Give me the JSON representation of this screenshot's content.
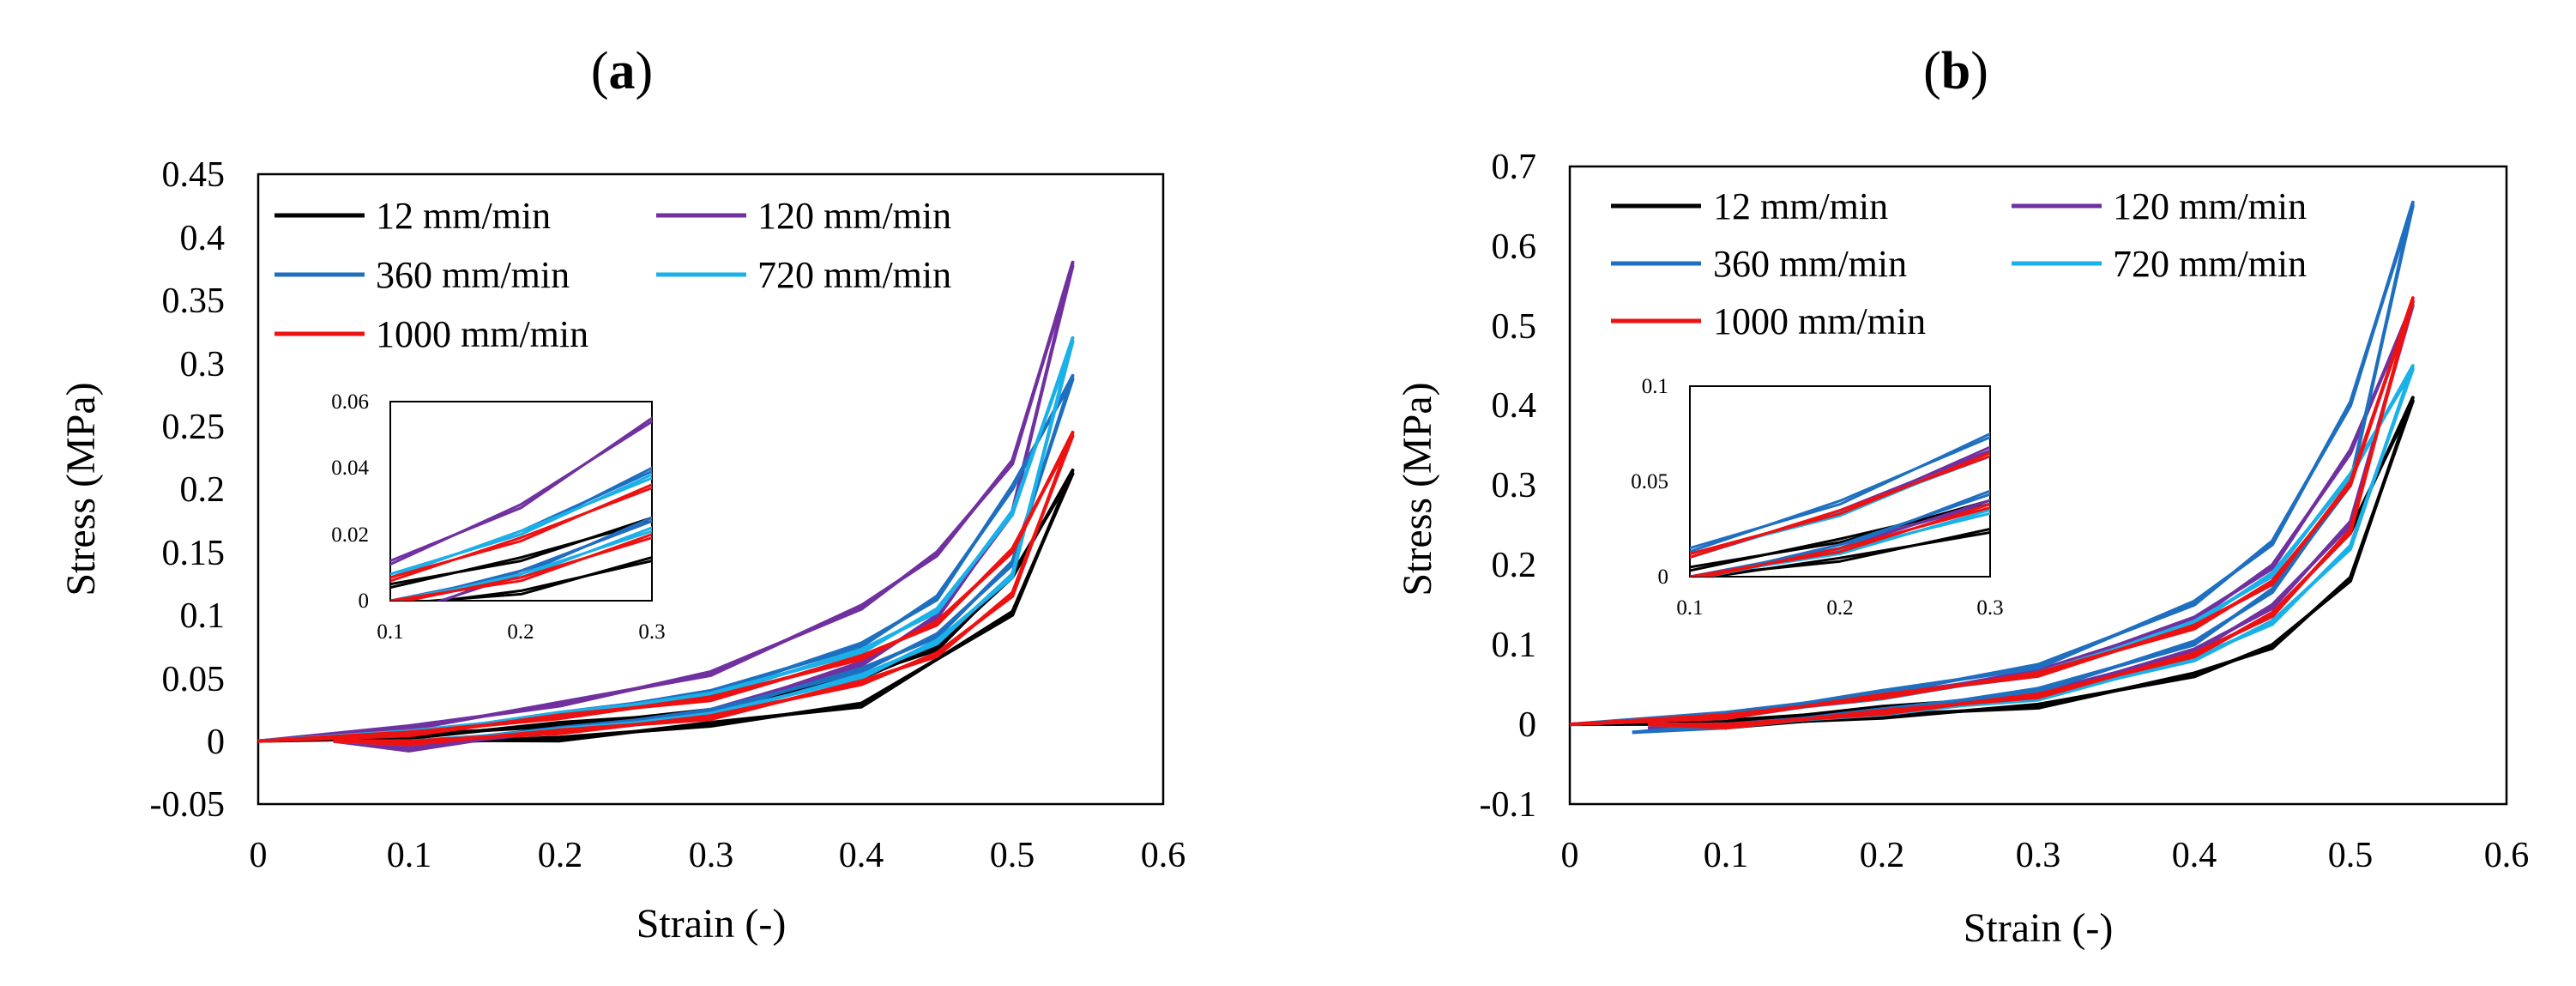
{
  "panels": [
    {
      "id": "a",
      "label": "a",
      "ticks_y": [
        "-0.05",
        "0",
        "0.05",
        "0.1",
        "0.15",
        "0.2",
        "0.25",
        "0.3",
        "0.35",
        "0.4",
        "0.45"
      ],
      "ticks_x": [
        "0",
        "0.1",
        "0.2",
        "0.3",
        "0.4",
        "0.5",
        "0.6"
      ],
      "inset_ticks_y": [
        "0",
        "0.02",
        "0.04",
        "0.06"
      ],
      "inset_ticks_x": [
        "0.1",
        "0.2",
        "0.3"
      ]
    },
    {
      "id": "b",
      "label": "b",
      "ticks_y": [
        "-0.1",
        "0",
        "0.1",
        "0.2",
        "0.3",
        "0.4",
        "0.5",
        "0.6",
        "0.7"
      ],
      "ticks_x": [
        "0",
        "0.1",
        "0.2",
        "0.3",
        "0.4",
        "0.5",
        "0.6"
      ],
      "inset_ticks_y": [
        "0",
        "0.05",
        "0.1"
      ],
      "inset_ticks_x": [
        "0.1",
        "0.2",
        "0.3"
      ]
    }
  ],
  "legend": [
    {
      "label": "12 mm/min",
      "color": "#000000"
    },
    {
      "label": "120 mm/min",
      "color": "#7030a0"
    },
    {
      "label": "360 mm/min",
      "color": "#1f6fc0"
    },
    {
      "label": "720 mm/min",
      "color": "#1ab0e8"
    },
    {
      "label": "1000 mm/min",
      "color": "#ee1111"
    }
  ],
  "chart_data": [
    {
      "type": "line",
      "title": "(a)",
      "xlabel": "Strain (-)",
      "ylabel": "Stress (MPa)",
      "xlim": [
        0,
        0.6
      ],
      "ylim": [
        -0.05,
        0.45
      ],
      "grid": false,
      "legend_position": "top-left",
      "series": [
        {
          "name": "12 mm/min",
          "loading": [
            [
              0,
              0
            ],
            [
              0.1,
              0.005
            ],
            [
              0.2,
              0.012
            ],
            [
              0.3,
              0.025
            ],
            [
              0.4,
              0.05
            ],
            [
              0.45,
              0.075
            ],
            [
              0.5,
              0.13
            ],
            [
              0.54,
              0.215
            ]
          ],
          "unloading": [
            [
              0.54,
              0.215
            ],
            [
              0.5,
              0.1
            ],
            [
              0.4,
              0.03
            ],
            [
              0.3,
              0.012
            ],
            [
              0.2,
              0.003
            ],
            [
              0.1,
              -0.002
            ],
            [
              0.05,
              0
            ]
          ]
        },
        {
          "name": "120 mm/min",
          "loading": [
            [
              0,
              0
            ],
            [
              0.1,
              0.012
            ],
            [
              0.2,
              0.028
            ],
            [
              0.3,
              0.055
            ],
            [
              0.4,
              0.105
            ],
            [
              0.45,
              0.15
            ],
            [
              0.5,
              0.22
            ],
            [
              0.54,
              0.38
            ]
          ],
          "unloading": [
            [
              0.54,
              0.38
            ],
            [
              0.5,
              0.18
            ],
            [
              0.45,
              0.1
            ],
            [
              0.4,
              0.06
            ],
            [
              0.3,
              0.025
            ],
            [
              0.2,
              0.008
            ],
            [
              0.1,
              -0.005
            ],
            [
              0.05,
              0
            ]
          ]
        },
        {
          "name": "360 mm/min",
          "loading": [
            [
              0,
              0
            ],
            [
              0.1,
              0.008
            ],
            [
              0.2,
              0.02
            ],
            [
              0.3,
              0.04
            ],
            [
              0.4,
              0.075
            ],
            [
              0.45,
              0.115
            ],
            [
              0.5,
              0.2
            ],
            [
              0.54,
              0.29
            ]
          ],
          "unloading": [
            [
              0.54,
              0.29
            ],
            [
              0.5,
              0.14
            ],
            [
              0.45,
              0.085
            ],
            [
              0.4,
              0.055
            ],
            [
              0.3,
              0.025
            ],
            [
              0.2,
              0.008
            ],
            [
              0.1,
              0
            ],
            [
              0.05,
              0
            ]
          ]
        },
        {
          "name": "720 mm/min",
          "loading": [
            [
              0,
              0
            ],
            [
              0.1,
              0.008
            ],
            [
              0.2,
              0.02
            ],
            [
              0.3,
              0.038
            ],
            [
              0.4,
              0.07
            ],
            [
              0.45,
              0.105
            ],
            [
              0.5,
              0.18
            ],
            [
              0.54,
              0.32
            ]
          ],
          "unloading": [
            [
              0.54,
              0.32
            ],
            [
              0.5,
              0.13
            ],
            [
              0.45,
              0.08
            ],
            [
              0.4,
              0.05
            ],
            [
              0.3,
              0.022
            ],
            [
              0.2,
              0.007
            ],
            [
              0.1,
              0
            ],
            [
              0.05,
              0
            ]
          ]
        },
        {
          "name": "1000 mm/min",
          "loading": [
            [
              0,
              0
            ],
            [
              0.1,
              0.007
            ],
            [
              0.2,
              0.018
            ],
            [
              0.3,
              0.035
            ],
            [
              0.4,
              0.065
            ],
            [
              0.45,
              0.095
            ],
            [
              0.5,
              0.15
            ],
            [
              0.54,
              0.245
            ]
          ],
          "unloading": [
            [
              0.54,
              0.245
            ],
            [
              0.5,
              0.115
            ],
            [
              0.45,
              0.07
            ],
            [
              0.4,
              0.045
            ],
            [
              0.3,
              0.02
            ],
            [
              0.2,
              0.006
            ],
            [
              0.1,
              0
            ],
            [
              0.05,
              0
            ]
          ]
        }
      ],
      "inset": {
        "xlim": [
          0.1,
          0.3
        ],
        "ylim": [
          0,
          0.06
        ]
      }
    },
    {
      "type": "line",
      "title": "(b)",
      "xlabel": "Strain (-)",
      "ylabel": "Stress (MPa)",
      "xlim": [
        0,
        0.6
      ],
      "ylim": [
        -0.1,
        0.7
      ],
      "grid": false,
      "legend_position": "top-left",
      "series": [
        {
          "name": "12 mm/min",
          "loading": [
            [
              0,
              0
            ],
            [
              0.1,
              0.005
            ],
            [
              0.2,
              0.018
            ],
            [
              0.3,
              0.04
            ],
            [
              0.4,
              0.085
            ],
            [
              0.45,
              0.14
            ],
            [
              0.5,
              0.24
            ],
            [
              0.54,
              0.41
            ]
          ],
          "unloading": [
            [
              0.54,
              0.41
            ],
            [
              0.5,
              0.18
            ],
            [
              0.45,
              0.1
            ],
            [
              0.4,
              0.06
            ],
            [
              0.3,
              0.025
            ],
            [
              0.2,
              0.008
            ],
            [
              0.1,
              0
            ],
            [
              0.05,
              0
            ]
          ]
        },
        {
          "name": "120 mm/min",
          "loading": [
            [
              0,
              0
            ],
            [
              0.1,
              0.012
            ],
            [
              0.2,
              0.033
            ],
            [
              0.3,
              0.068
            ],
            [
              0.4,
              0.13
            ],
            [
              0.45,
              0.2
            ],
            [
              0.5,
              0.34
            ],
            [
              0.54,
              0.53
            ]
          ],
          "unloading": [
            [
              0.54,
              0.53
            ],
            [
              0.5,
              0.25
            ],
            [
              0.45,
              0.15
            ],
            [
              0.4,
              0.09
            ],
            [
              0.3,
              0.04
            ],
            [
              0.2,
              0.015
            ],
            [
              0.1,
              0
            ],
            [
              0.05,
              -0.005
            ]
          ]
        },
        {
          "name": "360 mm/min",
          "loading": [
            [
              0,
              0
            ],
            [
              0.1,
              0.015
            ],
            [
              0.2,
              0.038
            ],
            [
              0.3,
              0.075
            ],
            [
              0.4,
              0.15
            ],
            [
              0.45,
              0.23
            ],
            [
              0.5,
              0.4
            ],
            [
              0.54,
              0.655
            ]
          ],
          "unloading": [
            [
              0.54,
              0.655
            ],
            [
              0.5,
              0.3
            ],
            [
              0.45,
              0.17
            ],
            [
              0.4,
              0.1
            ],
            [
              0.3,
              0.045
            ],
            [
              0.2,
              0.015
            ],
            [
              0.1,
              0
            ],
            [
              0.04,
              -0.01
            ]
          ]
        },
        {
          "name": "720 mm/min",
          "loading": [
            [
              0,
              0
            ],
            [
              0.1,
              0.012
            ],
            [
              0.2,
              0.032
            ],
            [
              0.3,
              0.065
            ],
            [
              0.4,
              0.125
            ],
            [
              0.45,
              0.19
            ],
            [
              0.5,
              0.31
            ],
            [
              0.54,
              0.45
            ]
          ],
          "unloading": [
            [
              0.54,
              0.45
            ],
            [
              0.5,
              0.22
            ],
            [
              0.45,
              0.13
            ],
            [
              0.4,
              0.08
            ],
            [
              0.3,
              0.035
            ],
            [
              0.2,
              0.012
            ],
            [
              0.1,
              0
            ],
            [
              0.05,
              0
            ]
          ]
        },
        {
          "name": "1000 mm/min",
          "loading": [
            [
              0,
              0
            ],
            [
              0.1,
              0.012
            ],
            [
              0.2,
              0.033
            ],
            [
              0.3,
              0.065
            ],
            [
              0.4,
              0.12
            ],
            [
              0.45,
              0.18
            ],
            [
              0.5,
              0.3
            ],
            [
              0.54,
              0.535
            ]
          ],
          "unloading": [
            [
              0.54,
              0.535
            ],
            [
              0.5,
              0.24
            ],
            [
              0.45,
              0.14
            ],
            [
              0.4,
              0.085
            ],
            [
              0.3,
              0.038
            ],
            [
              0.2,
              0.013
            ],
            [
              0.1,
              0
            ],
            [
              0.05,
              0
            ]
          ]
        }
      ],
      "inset": {
        "xlim": [
          0.1,
          0.3
        ],
        "ylim": [
          0,
          0.1
        ]
      }
    }
  ]
}
